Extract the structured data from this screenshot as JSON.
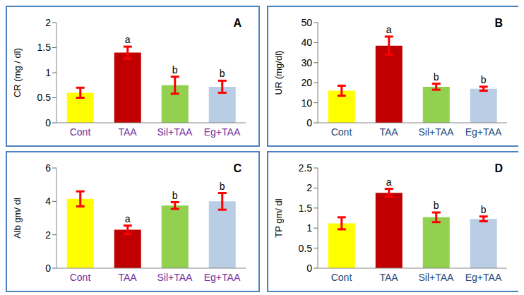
{
  "chart_data": [
    {
      "type": "bar",
      "title": "A",
      "y_label": "CR (mg / dl)",
      "categories": [
        "Cont",
        "TAA",
        "Sil+TAA",
        "Eg+TAA"
      ],
      "values": [
        0.6,
        1.4,
        0.75,
        0.72
      ],
      "errors": [
        0.1,
        0.12,
        0.17,
        0.12
      ],
      "annotations": [
        null,
        "a",
        "b",
        "b"
      ],
      "colors": [
        "#ffff00",
        "#c00000",
        "#92d050",
        "#b9cde5"
      ],
      "ylim": [
        0,
        2
      ],
      "yticks": [
        0,
        0.5,
        1,
        1.5,
        2
      ]
    },
    {
      "type": "bar",
      "title": "B",
      "y_label": "UR (mg/dl)",
      "categories": [
        "Cont",
        "TAA",
        "Sil+TAA",
        "Eg+TAA"
      ],
      "values": [
        16,
        38.5,
        18,
        17
      ],
      "errors": [
        2.5,
        4.5,
        1.5,
        1
      ],
      "annotations": [
        null,
        "a",
        "b",
        "b"
      ],
      "colors": [
        "#ffff00",
        "#c00000",
        "#92d050",
        "#b9cde5"
      ],
      "ylim": [
        0,
        50
      ],
      "yticks": [
        0,
        10,
        20,
        30,
        40,
        50
      ]
    },
    {
      "type": "bar",
      "title": "C",
      "y_label": "Alb gm/ dl",
      "categories": [
        "Cont",
        "TAA",
        "Sil+TAA",
        "Eg+TAA"
      ],
      "values": [
        4.15,
        2.3,
        3.75,
        4.0
      ],
      "errors": [
        0.45,
        0.25,
        0.2,
        0.5
      ],
      "annotations": [
        null,
        "a",
        "b",
        "b"
      ],
      "colors": [
        "#ffff00",
        "#c00000",
        "#92d050",
        "#b9cde5"
      ],
      "ylim": [
        0,
        6
      ],
      "yticks": [
        0,
        2,
        4,
        6
      ]
    },
    {
      "type": "bar",
      "title": "D",
      "y_label": "TP gm/ dl",
      "categories": [
        "Cont",
        "TAA",
        "Sil+TAA",
        "Eg+TAA"
      ],
      "values": [
        1.12,
        1.88,
        1.27,
        1.23
      ],
      "errors": [
        0.15,
        0.1,
        0.12,
        0.06
      ],
      "annotations": [
        null,
        "a",
        "b",
        "b"
      ],
      "colors": [
        "#ffff00",
        "#c00000",
        "#92d050",
        "#b9cde5"
      ],
      "ylim": [
        0,
        2.5
      ],
      "yticks": [
        0,
        0.5,
        1,
        1.5,
        2,
        2.5
      ]
    }
  ]
}
